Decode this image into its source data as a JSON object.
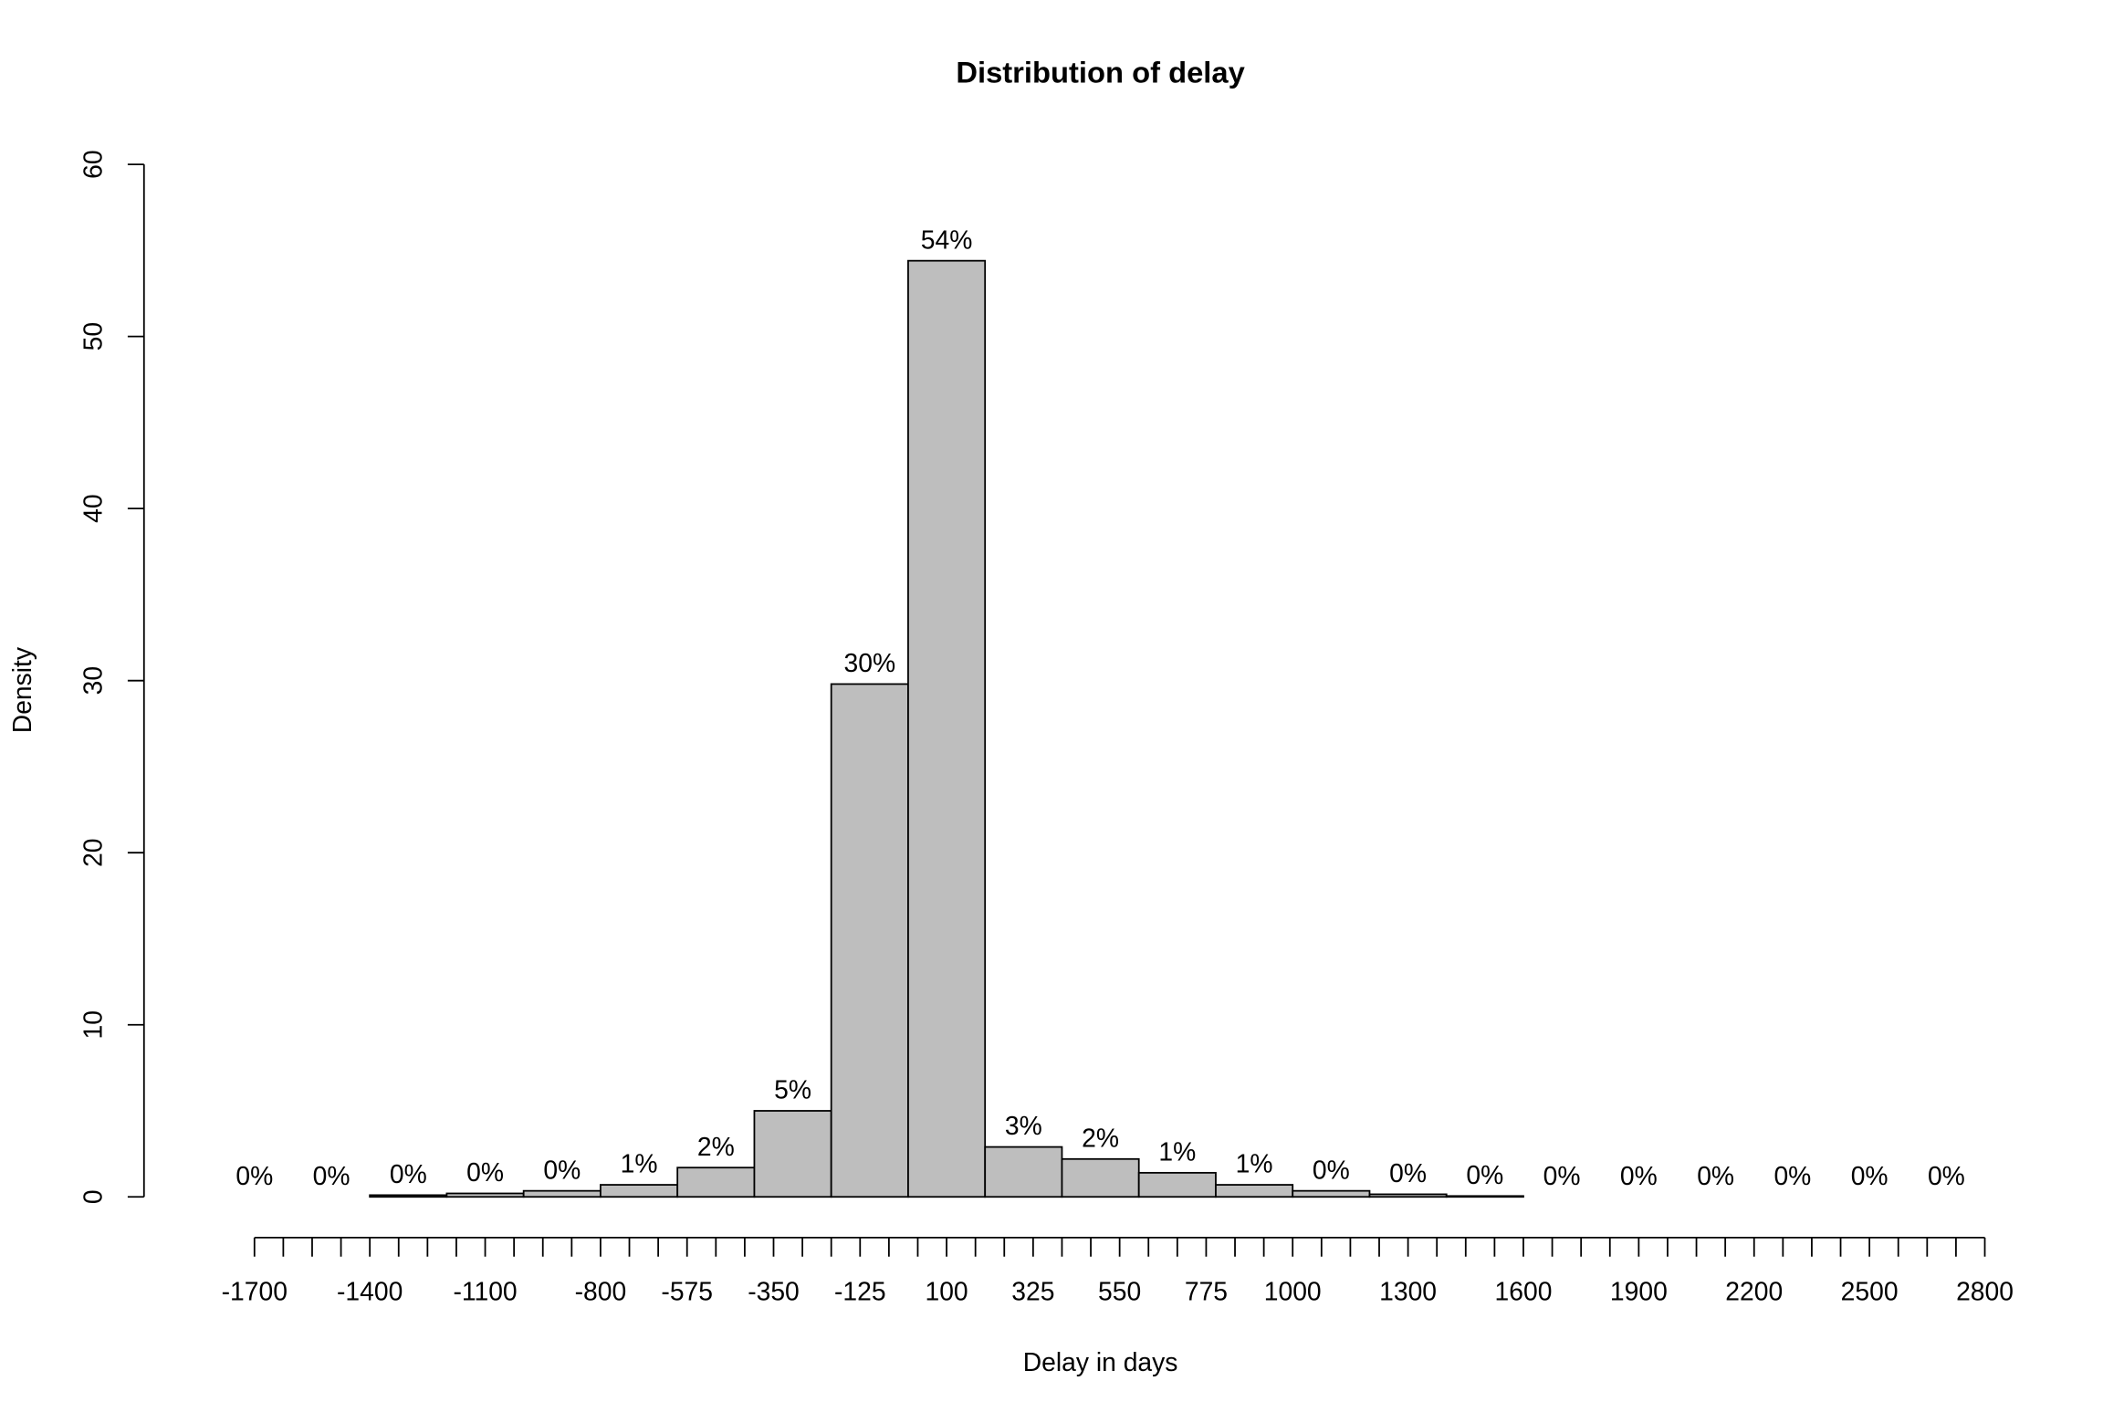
{
  "chart_data": {
    "type": "histogram",
    "title": "Distribution of delay",
    "xlabel": "Delay in days",
    "ylabel": "Density",
    "bins": [
      -1800,
      -1600,
      -1400,
      -1200,
      -1000,
      -800,
      -600,
      -400,
      -200,
      0,
      200,
      400,
      600,
      800,
      1000,
      1200,
      1400,
      1600,
      1800,
      2000,
      2200,
      2400,
      2600,
      2800
    ],
    "values": [
      0,
      0,
      0.1,
      0.2,
      0.35,
      0.7,
      1.7,
      5.0,
      29.8,
      54.4,
      2.9,
      2.2,
      1.4,
      0.7,
      0.35,
      0.15,
      0.05,
      0,
      0,
      0,
      0,
      0,
      0
    ],
    "value_labels": [
      "0%",
      "0%",
      "0%",
      "0%",
      "0%",
      "1%",
      "2%",
      "5%",
      "30%",
      "54%",
      "3%",
      "2%",
      "1%",
      "1%",
      "0%",
      "0%",
      "0%",
      "0%",
      "0%",
      "0%",
      "0%",
      "0%",
      "0%"
    ],
    "color": "#bebebe",
    "xlim": [
      -1800,
      2800
    ],
    "xticks": [
      -1700,
      -1400,
      -1100,
      -800,
      -575,
      -350,
      -125,
      100,
      325,
      550,
      775,
      1000,
      1300,
      1600,
      1900,
      2200,
      2500,
      2800
    ],
    "xminor_step": 75,
    "ylim": [
      0,
      60
    ],
    "yticks": [
      0,
      10,
      20,
      30,
      40,
      50,
      60
    ]
  }
}
